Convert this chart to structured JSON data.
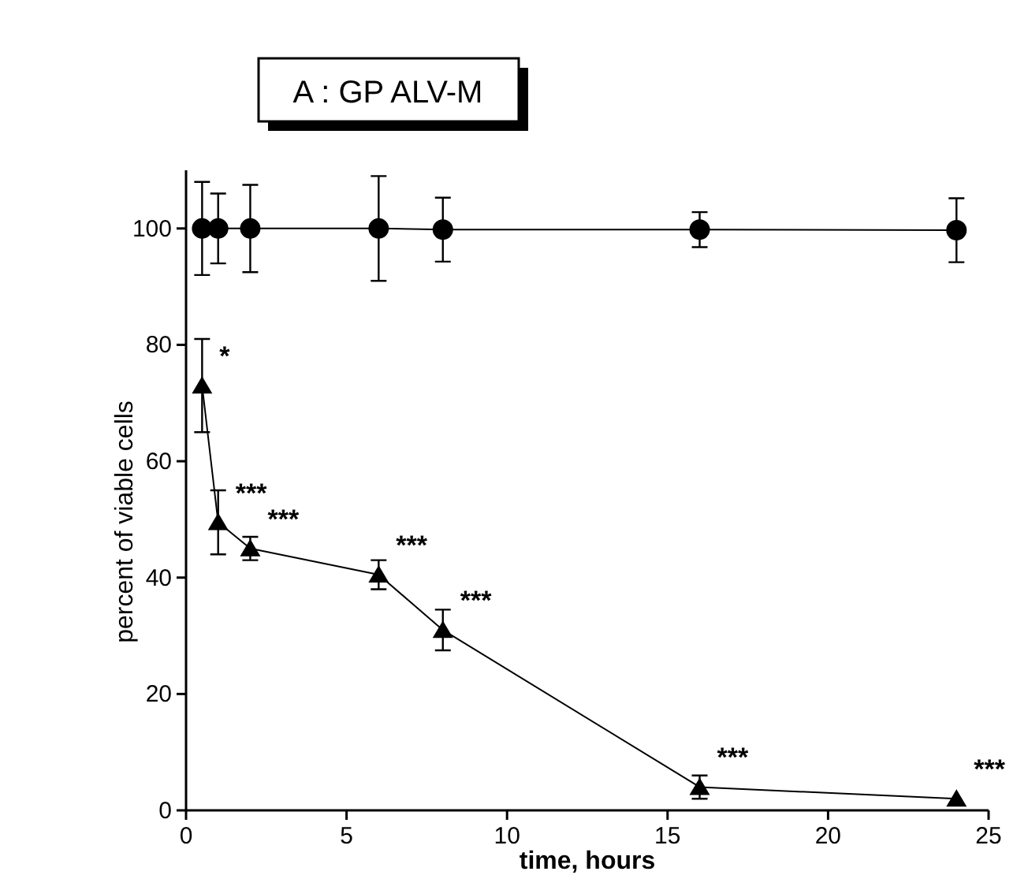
{
  "chart_data": {
    "type": "line",
    "title": "A : GP ALV-M",
    "xlabel": "time, hours",
    "ylabel": "percent of viable cells",
    "xlim": [
      0,
      25
    ],
    "xticks": [
      0,
      5,
      10,
      15,
      20,
      25
    ],
    "ylim": [
      0,
      110
    ],
    "yticks": [
      0,
      20,
      40,
      60,
      80,
      100
    ],
    "x": [
      0.5,
      1,
      2,
      6,
      8,
      16,
      24
    ],
    "series": [
      {
        "color": "#000000",
        "marker": "circle",
        "values": [
          100,
          100,
          100,
          100,
          99.8,
          99.8,
          99.7
        ],
        "errors": [
          8,
          6,
          7.5,
          9,
          5.5,
          3,
          5.5
        ]
      },
      {
        "color": "#000000",
        "marker": "triangle",
        "values": [
          73,
          49.5,
          45,
          40.5,
          31,
          4,
          2
        ],
        "errors": [
          8,
          5.5,
          2,
          2.5,
          3.5,
          2,
          null
        ]
      }
    ],
    "annotations": [
      {
        "text": "*",
        "x": 0.5,
        "y": 73
      },
      {
        "text": "***",
        "x": 1,
        "y": 49.5
      },
      {
        "text": "***",
        "x": 2,
        "y": 45
      },
      {
        "text": "***",
        "x": 6,
        "y": 40.5
      },
      {
        "text": "***",
        "x": 8,
        "y": 31
      },
      {
        "text": "***",
        "x": 16,
        "y": 4
      },
      {
        "text": "***",
        "x": 24,
        "y": 2
      }
    ]
  }
}
